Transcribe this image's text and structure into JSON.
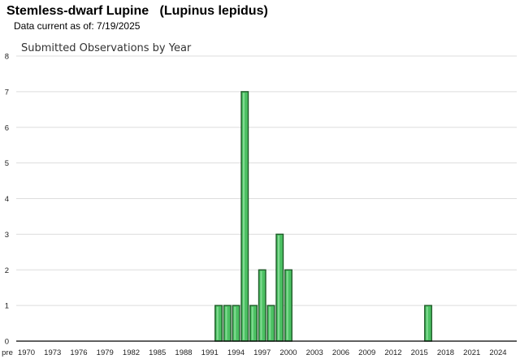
{
  "header": {
    "title": "Stemless-dwarf Lupine   (Lupinus lepidus)",
    "data_current": "Data current as of: 7/19/2025"
  },
  "colors": {
    "bar_fill": "#4cc163",
    "bar_stroke": "#1f5a28",
    "grid": "#dddddd",
    "axis": "#000000"
  },
  "chart_data": {
    "type": "bar",
    "title": "Submitted Observations by Year",
    "xlabel": "",
    "ylabel": "",
    "ylim": [
      0,
      8
    ],
    "yticks": [
      0,
      1,
      2,
      3,
      4,
      5,
      6,
      7,
      8
    ],
    "grid": true,
    "x_tick_labels": [
      "pre",
      "1970",
      "1973",
      "1976",
      "1979",
      "1982",
      "1985",
      "1988",
      "1991",
      "1994",
      "1997",
      "2000",
      "2003",
      "2006",
      "2009",
      "2012",
      "2015",
      "2018",
      "2021",
      "2024"
    ],
    "x_range": [
      "pre",
      2026
    ],
    "categories": [
      "1992",
      "1993",
      "1994",
      "1995",
      "1996",
      "1997",
      "1998",
      "1999",
      "2000",
      "2016"
    ],
    "values": [
      1,
      1,
      1,
      7,
      1,
      2,
      1,
      3,
      2,
      1
    ]
  }
}
